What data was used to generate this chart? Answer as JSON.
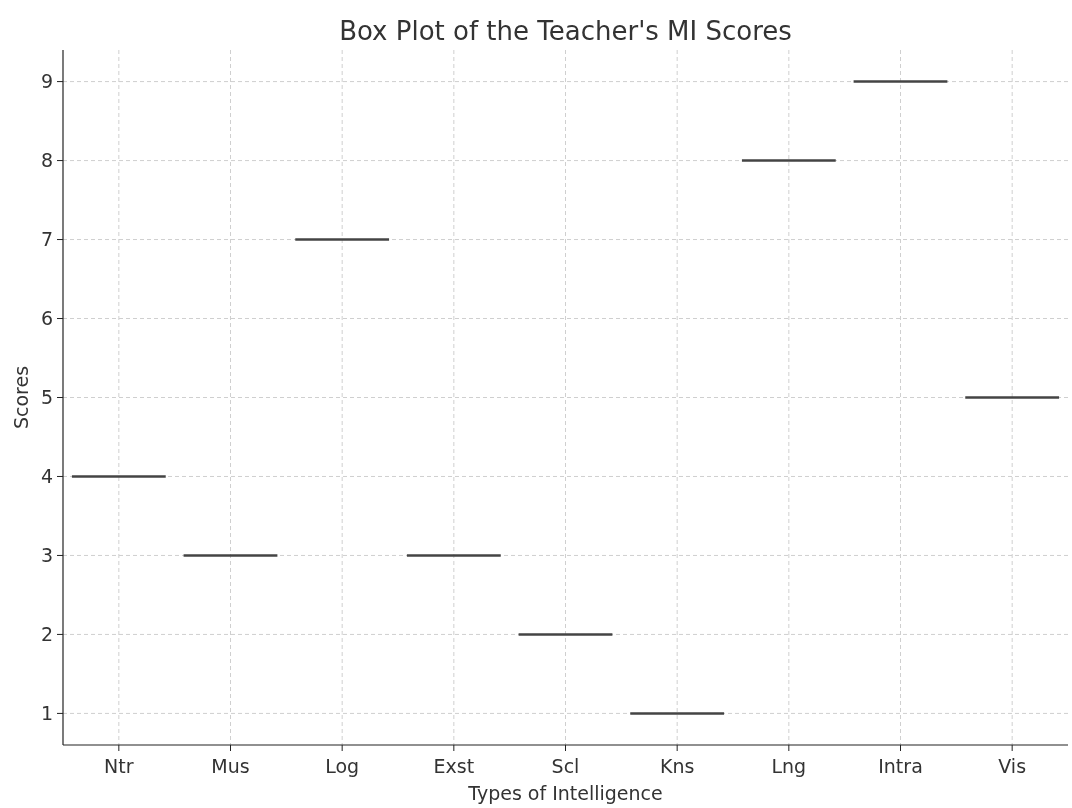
{
  "chart_data": {
    "type": "box",
    "title": "Box Plot of the Teacher's MI Scores",
    "xlabel": "Types of Intelligence",
    "ylabel": "Scores",
    "categories": [
      "Ntr",
      "Mus",
      "Log",
      "Exst",
      "Scl",
      "Kns",
      "Lng",
      "Intra",
      "Vis"
    ],
    "boxes": [
      {
        "low": 4,
        "q1": 4,
        "median": 4,
        "q3": 4,
        "high": 4
      },
      {
        "low": 3,
        "q1": 3,
        "median": 3,
        "q3": 3,
        "high": 3
      },
      {
        "low": 7,
        "q1": 7,
        "median": 7,
        "q3": 7,
        "high": 7
      },
      {
        "low": 3,
        "q1": 3,
        "median": 3,
        "q3": 3,
        "high": 3
      },
      {
        "low": 2,
        "q1": 2,
        "median": 2,
        "q3": 2,
        "high": 2
      },
      {
        "low": 1,
        "q1": 1,
        "median": 1,
        "q3": 1,
        "high": 1
      },
      {
        "low": 8,
        "q1": 8,
        "median": 8,
        "q3": 8,
        "high": 8
      },
      {
        "low": 9,
        "q1": 9,
        "median": 9,
        "q3": 9,
        "high": 9
      },
      {
        "low": 5,
        "q1": 5,
        "median": 5,
        "q3": 5,
        "high": 5
      }
    ],
    "color": "#444444",
    "ylim": [
      0.6,
      9.4
    ],
    "yticks": [
      1,
      2,
      3,
      4,
      5,
      6,
      7,
      8,
      9
    ],
    "grid": true
  }
}
